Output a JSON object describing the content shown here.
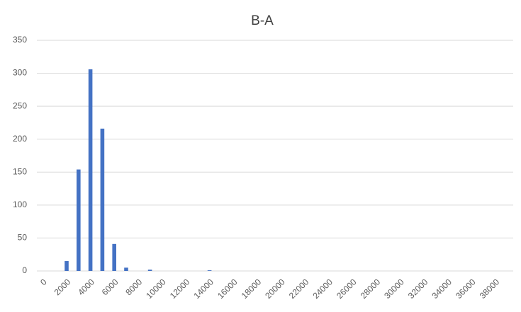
{
  "chart_data": {
    "type": "bar",
    "title": "B-A",
    "categories": [
      "0",
      null,
      "2000",
      null,
      "4000",
      null,
      "6000",
      null,
      "8000",
      null,
      "10000",
      null,
      "12000",
      null,
      "14000",
      null,
      "16000",
      null,
      "18000",
      null,
      "20000",
      null,
      "22000",
      null,
      "24000",
      null,
      "26000",
      null,
      "28000",
      null,
      "30000",
      null,
      "32000",
      null,
      "34000",
      null,
      "36000",
      null,
      "38000",
      null
    ],
    "values": [
      0,
      0,
      15,
      154,
      306,
      216,
      41,
      5,
      0,
      2,
      0,
      0,
      0,
      0,
      1,
      0,
      0,
      0,
      0,
      0,
      0,
      0,
      0,
      0,
      0,
      0,
      0,
      0,
      0,
      0,
      0,
      0,
      0,
      0,
      0,
      0,
      0,
      0,
      0,
      0
    ],
    "color": "#4472c4",
    "ylim": [
      0,
      350
    ],
    "yticks": [
      0,
      50,
      100,
      150,
      200,
      250,
      300,
      350
    ],
    "grid": true
  }
}
